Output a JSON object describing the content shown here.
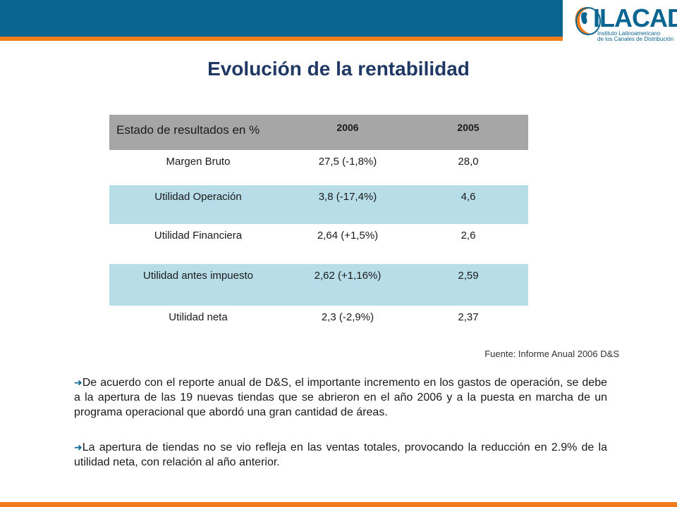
{
  "header": {
    "logo_word": "ILACAD",
    "logo_sub_line1": "Instituto Latinoamericano",
    "logo_sub_line2": "de los Canales de Distribución",
    "colors": {
      "bar": "#0b6591",
      "accent": "#f07c1c"
    }
  },
  "title": "Evolución de la rentabilidad",
  "table": {
    "headers": [
      "Estado de resultados en %",
      "2006",
      "2005"
    ],
    "rows": [
      {
        "label": "Margen Bruto",
        "y2006": "27,5 (-1,8%)",
        "y2005": "28,0"
      },
      {
        "label": "Utilidad Operación",
        "y2006": "3,8 (-17,4%)",
        "y2005": "4,6"
      },
      {
        "label": "Utilidad Financiera",
        "y2006": "2,64 (+1,5%)",
        "y2005": "2,6"
      },
      {
        "label": "Utilidad antes impuesto",
        "y2006": "2,62 (+1,16%)",
        "y2005": "2,59"
      },
      {
        "label": "Utilidad neta",
        "y2006": "2,3 (-2,9%)",
        "y2005": "2,37"
      }
    ]
  },
  "source": "Fuente: Informe Anual 2006 D&S",
  "bullets": [
    {
      "icon": "arrow-right-icon",
      "text": "De acuerdo con el reporte anual de D&S, el importante incremento en los gastos de operación, se debe a la apertura de las 19 nuevas tiendas que se abrieron en el año 2006 y a la puesta en marcha de un programa operacional que abordó una gran cantidad de áreas."
    },
    {
      "icon": "arrow-right-icon",
      "text": "La apertura de tiendas no se vio refleja en las ventas totales, provocando la reducción en 2.9% de la utilidad neta, con relación al año anterior."
    }
  ]
}
